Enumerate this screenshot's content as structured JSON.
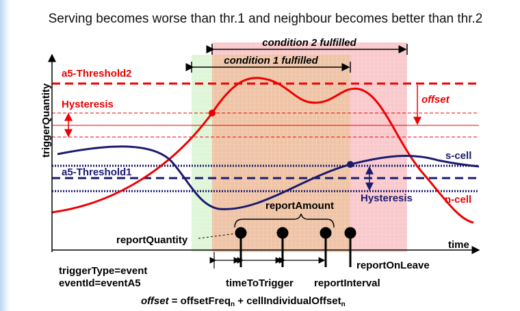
{
  "title": "Serving becomes worse than thr.1 and neighbour becomes better than thr.2",
  "axes": {
    "y": "triggerQuantity",
    "x": "time"
  },
  "conditions": {
    "condition2": "condition 2 fulfilled",
    "condition1": "condition 1 fulfilled"
  },
  "thresholds": {
    "threshold2": "a5-Threshold2",
    "threshold1": "a5-Threshold1",
    "hysteresis_n": "Hysteresis",
    "hysteresis_s": "Hysteresis",
    "offset": "offset"
  },
  "curves": {
    "serving": "s-cell",
    "neighbour": "n-cell"
  },
  "reporting": {
    "amount": "reportAmount",
    "quantity": "reportQuantity",
    "on_leave": "reportOnLeave",
    "time_to_trigger": "timeToTrigger",
    "interval": "reportInterval"
  },
  "config": {
    "trigger_type": "triggerType=event",
    "event_id": "eventId=eventA5"
  },
  "formula": {
    "lhs": "offset",
    "eq": " = offsetFreq",
    "sub1": "n",
    "plus": " + cellIndividualOffset",
    "sub2": "n"
  }
}
